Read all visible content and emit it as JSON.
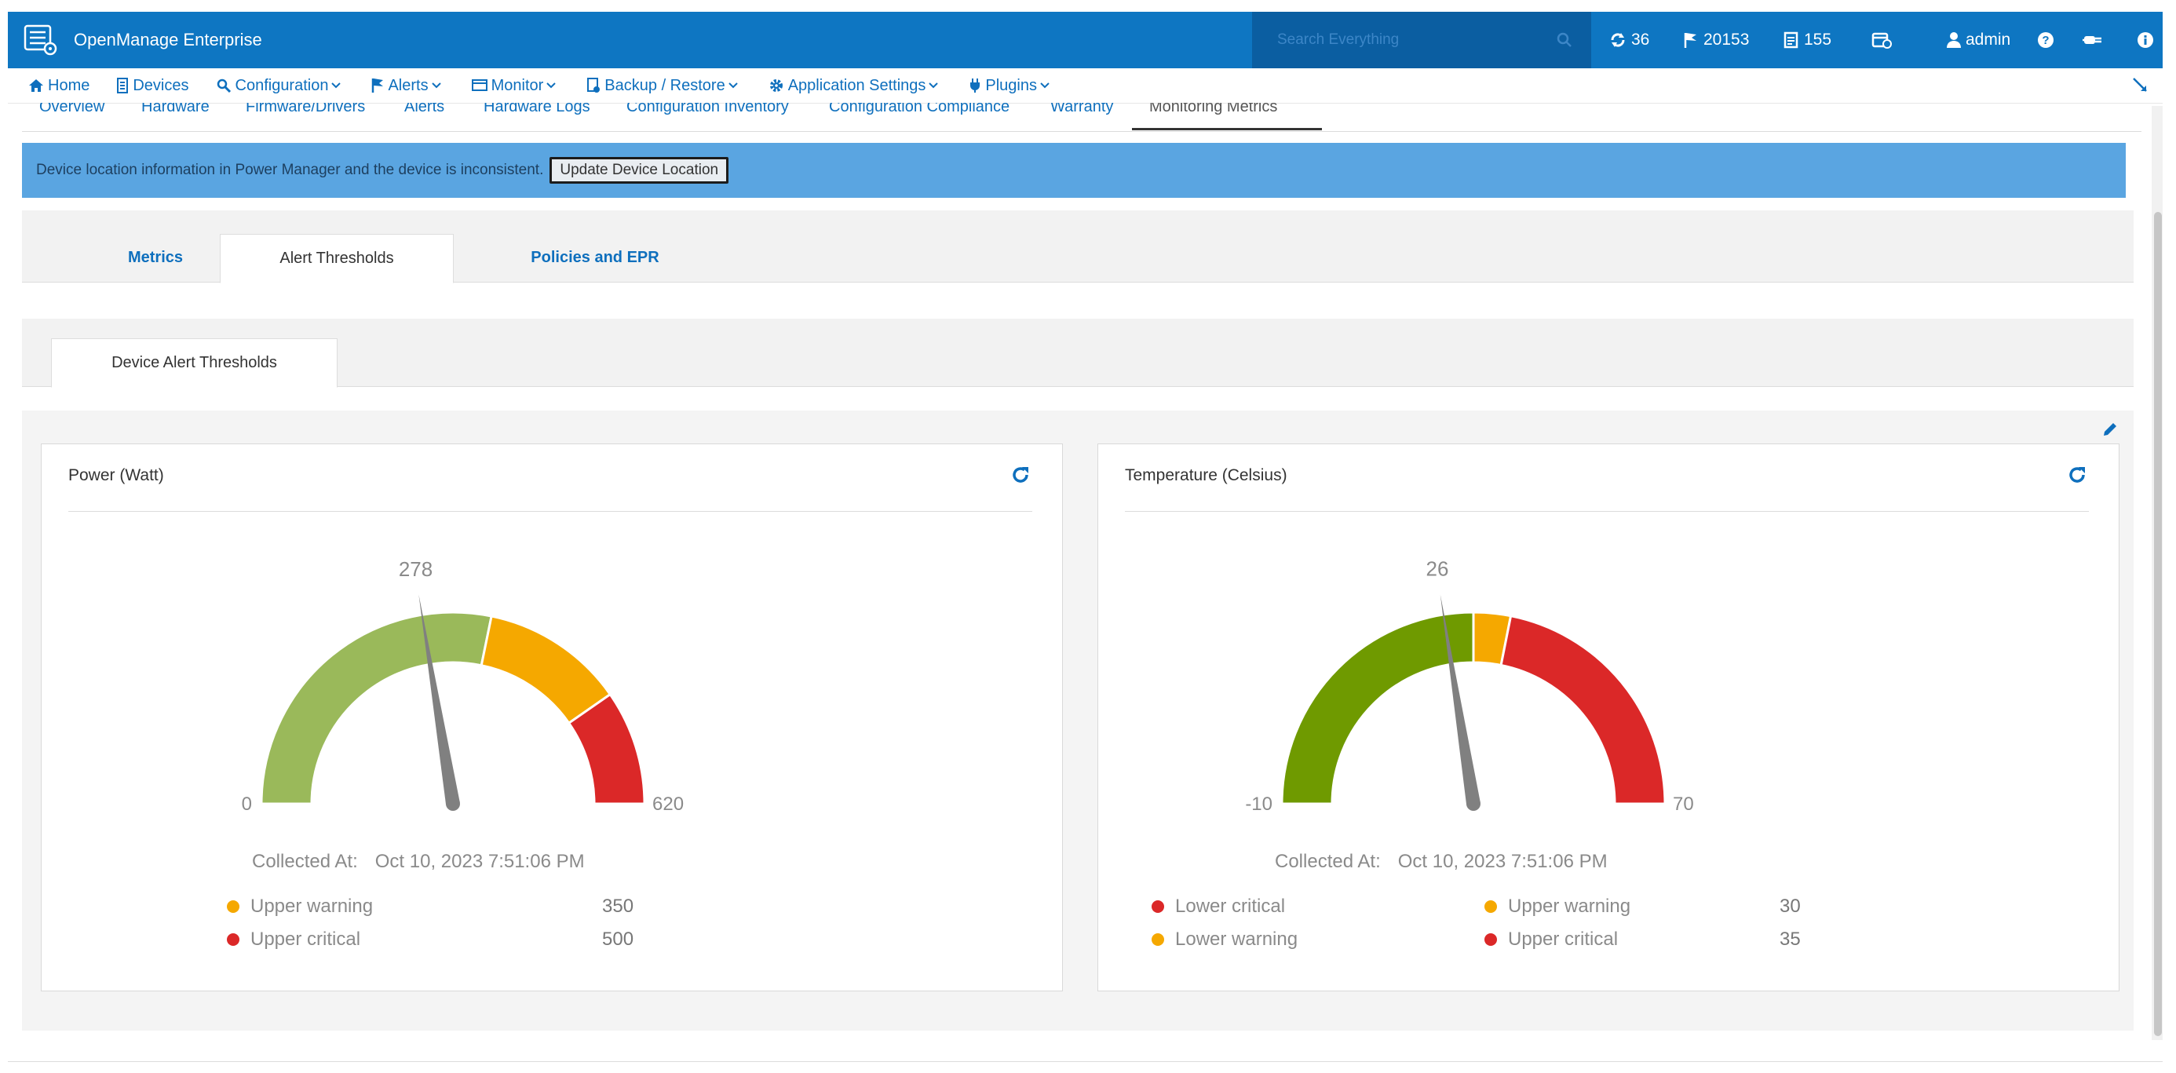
{
  "app": {
    "title": "OpenManage Enterprise"
  },
  "search": {
    "placeholder": "Search Everything"
  },
  "stats": {
    "jobs": "36",
    "alerts": "20153",
    "warranty": "155"
  },
  "user": {
    "name": "admin"
  },
  "nav": {
    "home": "Home",
    "devices": "Devices",
    "configuration": "Configuration",
    "alerts": "Alerts",
    "monitor": "Monitor",
    "backup": "Backup / Restore",
    "app_settings": "Application Settings",
    "plugins": "Plugins"
  },
  "device_tabs": [
    "Overview",
    "Hardware",
    "Firmware/Drivers",
    "Alerts",
    "Hardware Logs",
    "Configuration Inventory",
    "Configuration Compliance",
    "Warranty",
    "Monitoring Metrics"
  ],
  "banner": {
    "text": "Device location information in Power Manager and the device is inconsistent.",
    "button": "Update Device Location"
  },
  "sub_tabs": [
    "Metrics",
    "Alert Thresholds",
    "Policies and EPR"
  ],
  "device_alert_tab": "Device Alert Thresholds",
  "power": {
    "title": "Power (Watt)",
    "value": "278",
    "min": "0",
    "max": "620",
    "collected_label": "Collected At:",
    "collected_at": "Oct 10, 2023 7:51:06 PM",
    "legend": [
      {
        "label": "Upper warning",
        "value": "350",
        "color": "#f5a800"
      },
      {
        "label": "Upper critical",
        "value": "500",
        "color": "#db2828"
      }
    ]
  },
  "temperature": {
    "title": "Temperature (Celsius)",
    "value": "26",
    "min": "-10",
    "max": "70",
    "collected_label": "Collected At:",
    "collected_at": "Oct 10, 2023 7:51:06 PM",
    "legend": [
      {
        "label": "Lower critical",
        "color": "#db2828"
      },
      {
        "label": "Lower warning",
        "color": "#f5a800"
      },
      {
        "label": "Upper warning",
        "value": "30",
        "color": "#f5a800"
      },
      {
        "label": "Upper critical",
        "value": "35",
        "color": "#db2828"
      }
    ]
  },
  "colors": {
    "brand": "#0e76c2",
    "link": "#0e6fbd",
    "gauge_green_power": "#9ab95a",
    "gauge_green_temp": "#6f9a00",
    "gauge_yellow": "#f5a800",
    "gauge_red": "#db2828",
    "needle": "#808080"
  }
}
